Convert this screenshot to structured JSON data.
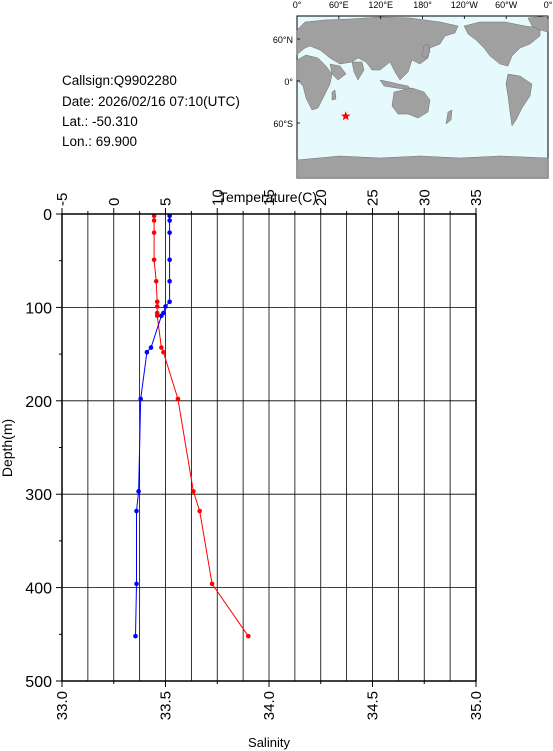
{
  "info": {
    "callsign": "Callsign:Q9902280",
    "date": "Date:  2026/02/16 07:10(UTC)",
    "lat": "Lat.:  -50.310",
    "lon": "Lon.:   69.900"
  },
  "map": {
    "lon_labels": [
      "0°",
      "60°E",
      "120°E",
      "180°",
      "120°W",
      "60°W",
      "0°"
    ],
    "lat_labels": [
      "60°N",
      "0°",
      "60°S"
    ],
    "ocean_color": "#e6f9fd",
    "land_color": "#a0a0a0",
    "marker": {
      "lon": 69.9,
      "lat": -50.31,
      "color": "#ff0000",
      "icon": "star-icon"
    }
  },
  "chart_data": {
    "type": "line",
    "top_axis_label": "Temperature(C)",
    "bottom_axis_label": "Salinity",
    "ylabel": "Depth(m)",
    "temperature_ticks": [
      "-5",
      "0",
      "5",
      "10",
      "15",
      "20",
      "25",
      "30",
      "35"
    ],
    "salinity_ticks": [
      "33.0",
      "33.5",
      "34.0",
      "34.5",
      "35.0"
    ],
    "depth_ticks": [
      "0",
      "100",
      "200",
      "300",
      "400",
      "500"
    ],
    "temperature_range": [
      -5,
      35
    ],
    "salinity_range": [
      33.0,
      35.0
    ],
    "depth_range": [
      0,
      500
    ],
    "grid": true,
    "series": [
      {
        "key": "temperature",
        "axis": "temperature",
        "color": "#ff0000",
        "points": [
          [
            3.9,
            2
          ],
          [
            3.9,
            7
          ],
          [
            3.9,
            20
          ],
          [
            3.9,
            49
          ],
          [
            4.1,
            72
          ],
          [
            4.2,
            94
          ],
          [
            4.2,
            99
          ],
          [
            4.2,
            106
          ],
          [
            4.2,
            109
          ],
          [
            4.6,
            143
          ],
          [
            4.8,
            148
          ],
          [
            6.2,
            198
          ],
          [
            7.7,
            297
          ],
          [
            8.3,
            318
          ],
          [
            9.5,
            396
          ],
          [
            13.0,
            452
          ]
        ]
      },
      {
        "key": "salinity",
        "axis": "salinity",
        "color": "#0000ff",
        "points": [
          [
            33.52,
            2
          ],
          [
            33.52,
            7
          ],
          [
            33.52,
            20
          ],
          [
            33.52,
            49
          ],
          [
            33.52,
            72
          ],
          [
            33.52,
            94
          ],
          [
            33.5,
            99
          ],
          [
            33.49,
            106
          ],
          [
            33.48,
            109
          ],
          [
            33.43,
            143
          ],
          [
            33.41,
            148
          ],
          [
            33.38,
            198
          ],
          [
            33.37,
            297
          ],
          [
            33.36,
            318
          ],
          [
            33.36,
            396
          ],
          [
            33.355,
            452
          ]
        ]
      }
    ]
  }
}
